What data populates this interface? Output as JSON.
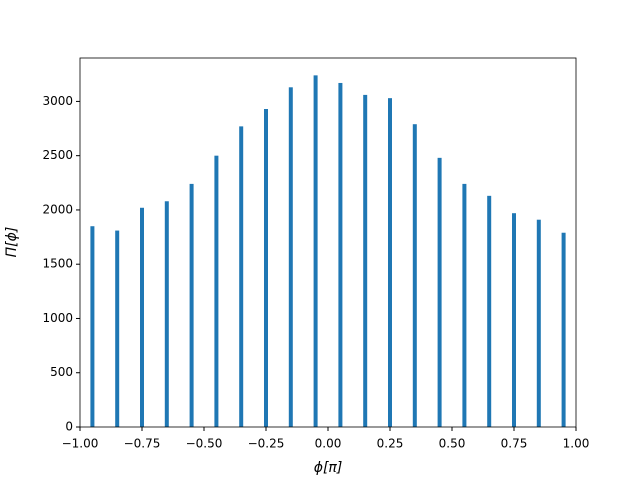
{
  "chart_data": {
    "type": "bar",
    "xlabel": "ϕ[π]",
    "ylabel": "Π[ϕ]",
    "color": "#1f77b4",
    "x": [
      -0.95,
      -0.85,
      -0.75,
      -0.65,
      -0.55,
      -0.45,
      -0.35,
      -0.25,
      -0.15,
      -0.05,
      0.05,
      0.15,
      0.25,
      0.35,
      0.45,
      0.55,
      0.65,
      0.75,
      0.85,
      0.95
    ],
    "values": [
      1850,
      1810,
      2020,
      2080,
      2240,
      2500,
      2770,
      2930,
      3130,
      3240,
      3170,
      3060,
      3030,
      2790,
      2480,
      2240,
      2130,
      1970,
      1910,
      1790
    ],
    "xlim": [
      -1,
      1
    ],
    "xticks": [
      {
        "value": -1,
        "label": "−1.00"
      },
      {
        "value": -0.75,
        "label": "−0.75"
      },
      {
        "value": -0.5,
        "label": "−0.50"
      },
      {
        "value": -0.25,
        "label": "−0.25"
      },
      {
        "value": 0,
        "label": "0.00"
      },
      {
        "value": 0.25,
        "label": "0.25"
      },
      {
        "value": 0.5,
        "label": "0.50"
      },
      {
        "value": 0.75,
        "label": "0.75"
      },
      {
        "value": 1,
        "label": "1.00"
      }
    ],
    "ylim": [
      0,
      3400
    ],
    "yticks": [
      0,
      500,
      1000,
      1500,
      2000,
      2500,
      3000
    ]
  }
}
